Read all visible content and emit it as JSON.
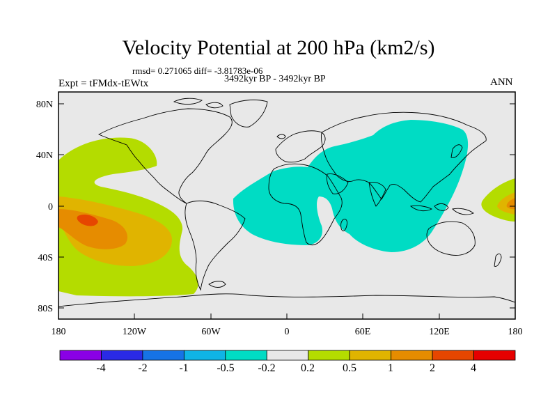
{
  "title": "Velocity Potential at 200 hPa (km2/s)",
  "stats": "rmsd= 0.271065 diff= -3.81783e-06",
  "period": "3492kyr BP - 3492kyr BP",
  "experiment": "Expt = tFMdx-tEWtx",
  "season": "ANN",
  "map": {
    "lat_ticks": [
      "80N",
      "40N",
      "0",
      "40S",
      "80S"
    ],
    "lon_ticks": [
      "180",
      "120W",
      "60W",
      "0",
      "60E",
      "120E",
      "180"
    ],
    "background_color": "#e8e8e8"
  },
  "colorbar": {
    "labels": [
      "-4",
      "-2",
      "-1",
      "-0.5",
      "-0.2",
      "0.2",
      "0.5",
      "1",
      "2",
      "4"
    ],
    "colors": [
      "#8a00e6",
      "#2a2ae6",
      "#1673e6",
      "#0fb4e6",
      "#00dcc4",
      "#e8e8e8",
      "#b4dc00",
      "#e0b400",
      "#e68c00",
      "#e64600",
      "#e60000"
    ]
  }
}
